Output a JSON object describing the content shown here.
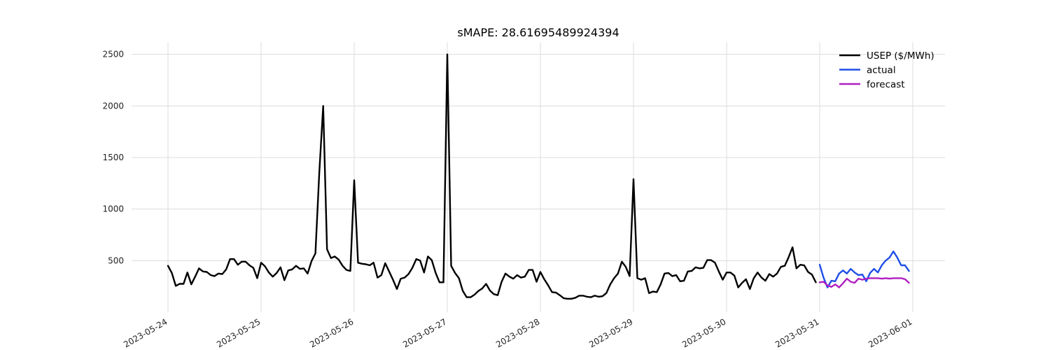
{
  "chart_data": {
    "type": "line",
    "title": "sMAPE: 28.61695489924394",
    "xlabel": "",
    "ylabel": "",
    "ylim": [
      0,
      2620
    ],
    "y_ticks": [
      500,
      1000,
      1500,
      2000,
      2500
    ],
    "x_ticks": [
      "2023-05-24",
      "2023-05-25",
      "2023-05-26",
      "2023-05-27",
      "2023-05-28",
      "2023-05-29",
      "2023-05-30",
      "2023-05-31",
      "2023-06-01"
    ],
    "x_start": "2023-05-24",
    "step_hours": 1,
    "grid": true,
    "legend_position": "top-right",
    "series": [
      {
        "name": "USEP ($/MWh)",
        "color": "#000000",
        "offset": 0,
        "values": [
          450,
          380,
          255,
          275,
          275,
          385,
          270,
          345,
          425,
          395,
          390,
          360,
          350,
          375,
          370,
          415,
          515,
          515,
          460,
          490,
          490,
          455,
          430,
          330,
          480,
          445,
          385,
          345,
          380,
          435,
          310,
          405,
          415,
          450,
          420,
          425,
          375,
          495,
          570,
          1350,
          2000,
          610,
          525,
          540,
          510,
          450,
          410,
          400,
          1280,
          480,
          470,
          465,
          455,
          480,
          335,
          360,
          475,
          395,
          315,
          225,
          325,
          335,
          370,
          430,
          515,
          500,
          385,
          540,
          505,
          380,
          290,
          290,
          2500,
          450,
          380,
          330,
          205,
          145,
          145,
          170,
          205,
          230,
          275,
          210,
          175,
          165,
          295,
          375,
          345,
          325,
          360,
          335,
          345,
          410,
          410,
          295,
          390,
          320,
          260,
          195,
          190,
          165,
          135,
          130,
          130,
          140,
          160,
          160,
          150,
          145,
          160,
          150,
          155,
          185,
          270,
          330,
          375,
          490,
          440,
          350,
          1290,
          330,
          315,
          330,
          185,
          200,
          195,
          270,
          375,
          380,
          350,
          360,
          300,
          305,
          395,
          400,
          435,
          425,
          430,
          505,
          505,
          480,
          395,
          315,
          385,
          385,
          355,
          240,
          285,
          320,
          225,
          330,
          385,
          335,
          305,
          370,
          345,
          375,
          440,
          450,
          535,
          630,
          425,
          460,
          455,
          390,
          365,
          290
        ]
      },
      {
        "name": "actual",
        "color": "#1f4fe6",
        "offset": 168,
        "values": [
          460,
          335,
          240,
          305,
          300,
          375,
          405,
          375,
          420,
          385,
          360,
          365,
          300,
          380,
          420,
          385,
          455,
          500,
          530,
          590,
          530,
          455,
          455,
          400
        ]
      },
      {
        "name": "forecast",
        "color": "#b01fc0",
        "offset": 168,
        "values": [
          290,
          295,
          260,
          245,
          270,
          240,
          280,
          325,
          295,
          285,
          325,
          315,
          325,
          330,
          330,
          330,
          325,
          330,
          325,
          330,
          330,
          330,
          320,
          285
        ]
      }
    ]
  }
}
